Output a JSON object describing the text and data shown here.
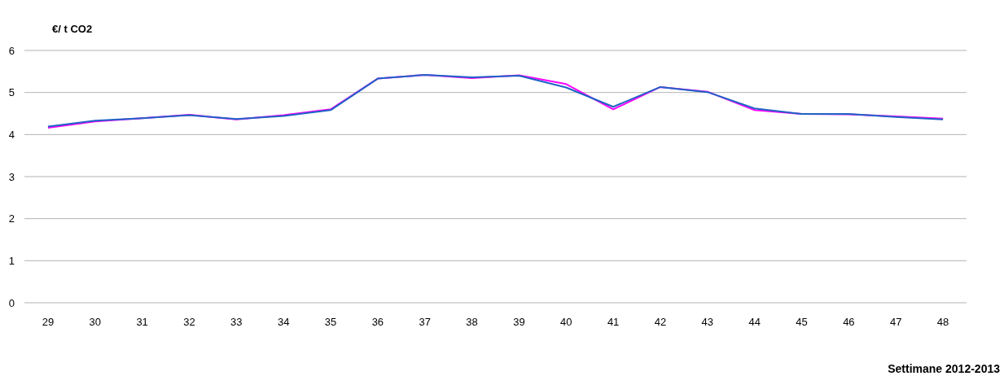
{
  "chart_data": {
    "type": "line",
    "ylabel": "€/ t CO2",
    "xlabel": "Settimane 2012-2013",
    "categories": [
      "29",
      "30",
      "31",
      "32",
      "33",
      "34",
      "35",
      "36",
      "37",
      "38",
      "39",
      "40",
      "41",
      "42",
      "43",
      "44",
      "45",
      "46",
      "47",
      "48"
    ],
    "series": [
      {
        "color": "#ff00ff",
        "values": [
          4.16,
          4.31,
          4.39,
          4.47,
          4.36,
          4.46,
          4.6,
          5.33,
          5.42,
          5.34,
          5.41,
          5.2,
          4.6,
          5.13,
          5.02,
          4.58,
          4.49,
          4.48,
          4.43,
          4.38
        ]
      },
      {
        "color": "#1f63c6",
        "values": [
          4.19,
          4.33,
          4.39,
          4.46,
          4.37,
          4.44,
          4.58,
          5.33,
          5.42,
          5.36,
          5.4,
          5.12,
          4.66,
          5.13,
          5.01,
          4.62,
          4.49,
          4.49,
          4.42,
          4.36
        ]
      }
    ],
    "ylim": [
      0,
      6
    ],
    "yticks": [
      0,
      1,
      2,
      3,
      4,
      5,
      6
    ],
    "grid": "y",
    "marker": "none",
    "line_style": "solid"
  }
}
